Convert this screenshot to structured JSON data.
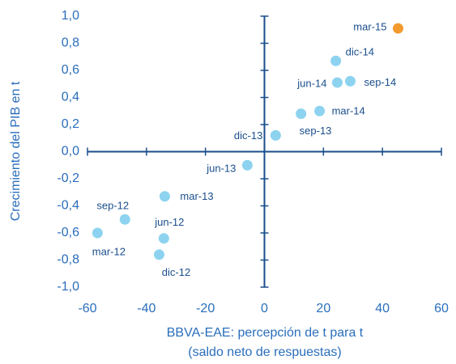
{
  "chart_data": {
    "type": "scatter",
    "ylabel": "Crecimiento del PIB en t",
    "xlabel": [
      "BBVA-EAE: percepción de t para t",
      "(saldo neto de respuestas)"
    ],
    "x": [
      45.3,
      24.2,
      24.7,
      29.1,
      18.7,
      12.4,
      3.8,
      -5.8,
      -33.8,
      -47.3,
      -34.1,
      -56.6,
      -35.7
    ],
    "values": [
      0.91,
      0.67,
      0.51,
      0.52,
      0.3,
      0.28,
      0.12,
      -0.1,
      -0.33,
      -0.5,
      -0.64,
      -0.6,
      -0.76
    ],
    "labels": [
      "mar-15",
      "dic-14",
      "jun-14",
      "sep-14",
      "mar-14",
      "sep-13",
      "dic-13",
      "jun-13",
      "mar-13",
      "sep-12",
      "jun-12",
      "mar-12",
      "dic-12"
    ],
    "colors": [
      "#f39a2e",
      "#8dd3f0",
      "#8dd3f0",
      "#8dd3f0",
      "#8dd3f0",
      "#8dd3f0",
      "#8dd3f0",
      "#8dd3f0",
      "#8dd3f0",
      "#8dd3f0",
      "#8dd3f0",
      "#8dd3f0",
      "#8dd3f0"
    ],
    "xlim": [
      -60,
      60
    ],
    "xticks": [
      -60,
      -40,
      -20,
      0,
      20,
      40,
      60
    ],
    "ylim": [
      -1,
      1
    ],
    "yticks": [
      {
        "value": -1,
        "label": "-1,0"
      },
      {
        "value": -0.8,
        "label": "-0,8"
      },
      {
        "value": -0.6,
        "label": "-0,6"
      },
      {
        "value": -0.4,
        "label": "-0,4"
      },
      {
        "value": -0.2,
        "label": "-0,2"
      },
      {
        "value": 0,
        "label": "0,0"
      },
      {
        "value": 0.2,
        "label": "0,2"
      },
      {
        "value": 0.4,
        "label": "0,4"
      },
      {
        "value": 0.6,
        "label": "0,6"
      },
      {
        "value": 0.8,
        "label": "0,8"
      },
      {
        "value": 1,
        "label": "1,0"
      }
    ],
    "axis_color": "#1a4e8c",
    "text_color": "#2a6ebb"
  }
}
